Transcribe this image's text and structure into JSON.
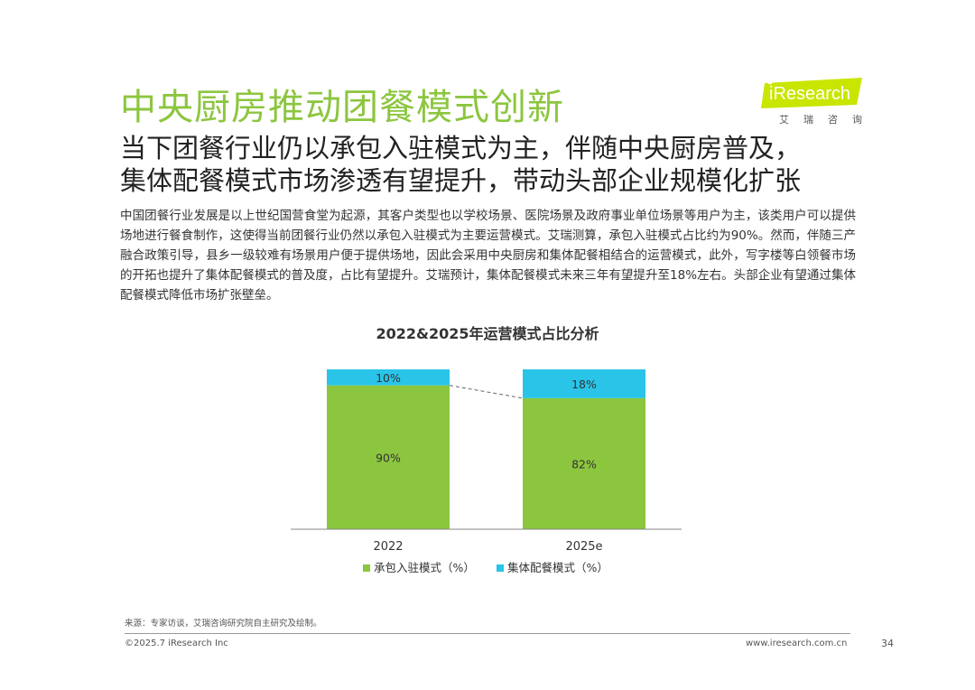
{
  "header": {
    "title": "中央厨房推动团餐模式创新",
    "subtitle_line1": "当下团餐行业仍以承包入驻模式为主，伴随中央厨房普及，",
    "subtitle_line2": "集体配餐模式市场渗透有望提升，带动头部企业规模化扩张"
  },
  "logo": {
    "brand": "iResearch",
    "sub": "艾瑞咨询"
  },
  "body": {
    "paragraph": "中国团餐行业发展是以上世纪国营食堂为起源，其客户类型也以学校场景、医院场景及政府事业单位场景等用户为主，该类用户可以提供场地进行餐食制作，这使得当前团餐行业仍然以承包入驻模式为主要运营模式。艾瑞测算，承包入驻模式占比约为90%。然而，伴随三产融合政策引导，县乡一级较难有场景用户便于提供场地，因此会采用中央厨房和集体配餐相结合的运营模式，此外，写字楼等白领餐市场的开拓也提升了集体配餐模式的普及度，占比有望提升。艾瑞预计，集体配餐模式未来三年有望提升至18%左右。头部企业有望通过集体配餐模式降低市场扩张壁垒。"
  },
  "chart_data": {
    "type": "bar",
    "stacked": true,
    "title": "2022&2025年运营模式占比分析",
    "categories": [
      "2022",
      "2025e"
    ],
    "series": [
      {
        "name": "承包入驻模式（%）",
        "values": [
          90,
          82
        ],
        "labels": [
          "90%",
          "82%"
        ],
        "color": "#8cc63f"
      },
      {
        "name": "集体配餐模式（%）",
        "values": [
          10,
          18
        ],
        "labels": [
          "10%",
          "18%"
        ],
        "color": "#29c4e8"
      }
    ],
    "ylim": [
      0,
      100
    ],
    "grid": false,
    "legend": "bottom",
    "connector": "dashed"
  },
  "footer": {
    "source": "来源：专家访谈，艾瑞咨询研究院自主研究及绘制。",
    "copyright": "©2025.7 iResearch Inc",
    "website": "www.iresearch.com.cn",
    "page": "34"
  }
}
